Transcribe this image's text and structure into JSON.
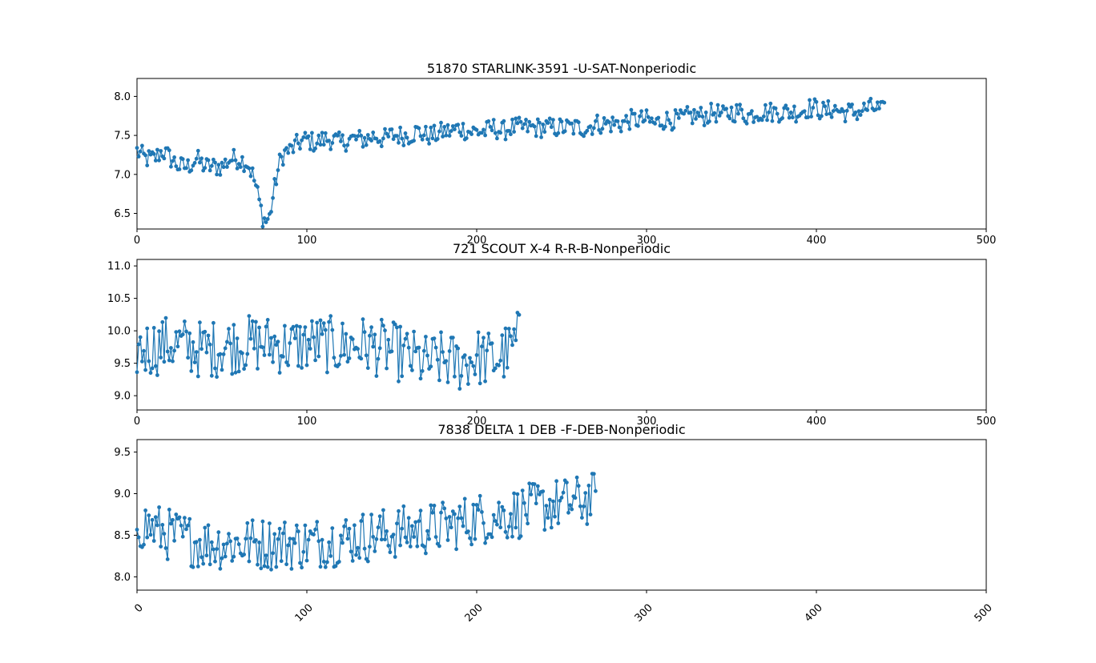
{
  "figure": {
    "line_color": "#1f77b4",
    "axis_color": "#000000",
    "background": "#ffffff"
  },
  "chart_data": [
    {
      "type": "line",
      "title": "51870 STARLINK-3591 -U-SAT-Nonperiodic",
      "xlabel": "",
      "ylabel": "",
      "xlim": [
        0,
        500
      ],
      "ylim": [
        6.3,
        8.23
      ],
      "xticks": [
        0,
        100,
        200,
        300,
        400,
        500
      ],
      "yticks": [
        6.5,
        7.0,
        7.5,
        8.0
      ],
      "xtick_labels": [
        "0",
        "100",
        "200",
        "300",
        "400",
        "500"
      ],
      "ytick_labels": [
        "6.5",
        "7.0",
        "7.5",
        "8.0"
      ],
      "markers": true,
      "grid": false,
      "series": [
        {
          "color": "#1f77b4",
          "x": [
            0,
            5,
            10,
            15,
            20,
            25,
            30,
            35,
            40,
            45,
            50,
            55,
            60,
            65,
            68,
            70,
            72,
            74,
            76,
            78,
            80,
            82,
            84,
            86,
            88,
            90,
            95,
            100,
            105,
            110,
            115,
            120,
            125,
            130,
            135,
            140,
            145,
            150,
            155,
            160,
            165,
            170,
            175,
            180,
            185,
            190,
            195,
            200,
            205,
            210,
            215,
            220,
            225,
            230,
            235,
            240,
            245,
            250,
            255,
            260,
            265,
            270,
            275,
            280,
            285,
            290,
            295,
            300,
            305,
            310,
            315,
            320,
            325,
            330,
            335,
            340,
            345,
            350,
            355,
            360,
            365,
            370,
            375,
            380,
            385,
            390,
            395,
            400,
            405,
            410,
            415,
            420,
            425,
            430,
            435,
            440
          ],
          "y": [
            7.3,
            7.2,
            7.2,
            7.3,
            7.2,
            7.1,
            7.1,
            7.2,
            7.1,
            7.1,
            7.1,
            7.2,
            7.2,
            7.15,
            7.0,
            6.85,
            6.65,
            6.45,
            6.4,
            6.45,
            6.7,
            6.95,
            7.15,
            7.25,
            7.3,
            7.3,
            7.4,
            7.45,
            7.4,
            7.45,
            7.45,
            7.4,
            7.45,
            7.45,
            7.45,
            7.5,
            7.45,
            7.5,
            7.5,
            7.5,
            7.55,
            7.5,
            7.5,
            7.55,
            7.55,
            7.6,
            7.55,
            7.55,
            7.55,
            7.6,
            7.55,
            7.6,
            7.6,
            7.6,
            7.6,
            7.6,
            7.6,
            7.6,
            7.6,
            7.6,
            7.6,
            7.65,
            7.65,
            7.65,
            7.65,
            7.7,
            7.7,
            7.7,
            7.65,
            7.7,
            7.7,
            7.7,
            7.75,
            7.75,
            7.75,
            7.8,
            7.75,
            7.8,
            7.8,
            7.75,
            7.8,
            7.8,
            7.8,
            7.8,
            7.8,
            7.8,
            7.85,
            7.85,
            7.8,
            7.85,
            7.8,
            7.8,
            7.8,
            7.85,
            7.85,
            7.8
          ],
          "noise_amplitude": 0.13
        }
      ]
    },
    {
      "type": "line",
      "title": "721 SCOUT X-4 R-R-B-Nonperiodic",
      "xlabel": "",
      "ylabel": "",
      "xlim": [
        0,
        500
      ],
      "ylim": [
        8.78,
        11.1
      ],
      "xticks": [
        0,
        100,
        200,
        300,
        400,
        500
      ],
      "yticks": [
        9.0,
        9.5,
        10.0,
        10.5,
        11.0
      ],
      "xtick_labels": [
        "0",
        "100",
        "200",
        "300",
        "400",
        "500"
      ],
      "ytick_labels": [
        "9.0",
        "9.5",
        "10.0",
        "10.5",
        "11.0"
      ],
      "markers": true,
      "grid": false,
      "series": [
        {
          "color": "#1f77b4",
          "x": [
            0,
            10,
            20,
            30,
            40,
            50,
            60,
            70,
            80,
            90,
            100,
            110,
            120,
            130,
            140,
            150,
            160,
            170,
            180,
            190,
            200,
            210,
            220,
            225
          ],
          "y": [
            9.7,
            9.75,
            9.8,
            9.75,
            9.7,
            9.75,
            9.8,
            9.8,
            9.8,
            9.75,
            9.8,
            9.8,
            9.75,
            9.8,
            9.75,
            9.7,
            9.6,
            9.5,
            9.55,
            9.5,
            9.6,
            9.55,
            9.7,
            9.9
          ],
          "noise_amplitude": 0.45
        }
      ]
    },
    {
      "type": "line",
      "title": "7838 DELTA 1 DEB -F-DEB-Nonperiodic",
      "xlabel": "",
      "ylabel": "",
      "xlim": [
        0,
        500
      ],
      "ylim": [
        7.84,
        9.65
      ],
      "xticks": [
        0,
        100,
        200,
        300,
        400,
        500
      ],
      "yticks": [
        8.0,
        8.5,
        9.0,
        9.5
      ],
      "xtick_labels": [
        "0",
        "100",
        "200",
        "300",
        "400",
        "500"
      ],
      "ytick_labels": [
        "8.0",
        "8.5",
        "9.0",
        "9.5"
      ],
      "xtick_rotation": 45,
      "markers": true,
      "grid": false,
      "series": [
        {
          "color": "#1f77b4",
          "x": [
            0,
            20,
            40,
            60,
            80,
            100,
            120,
            140,
            160,
            180,
            200,
            220,
            240,
            260,
            270
          ],
          "y": [
            8.65,
            8.5,
            8.4,
            8.4,
            8.4,
            8.4,
            8.45,
            8.5,
            8.55,
            8.6,
            8.7,
            8.75,
            8.85,
            8.9,
            8.95
          ],
          "noise_amplitude": 0.32
        }
      ]
    }
  ]
}
